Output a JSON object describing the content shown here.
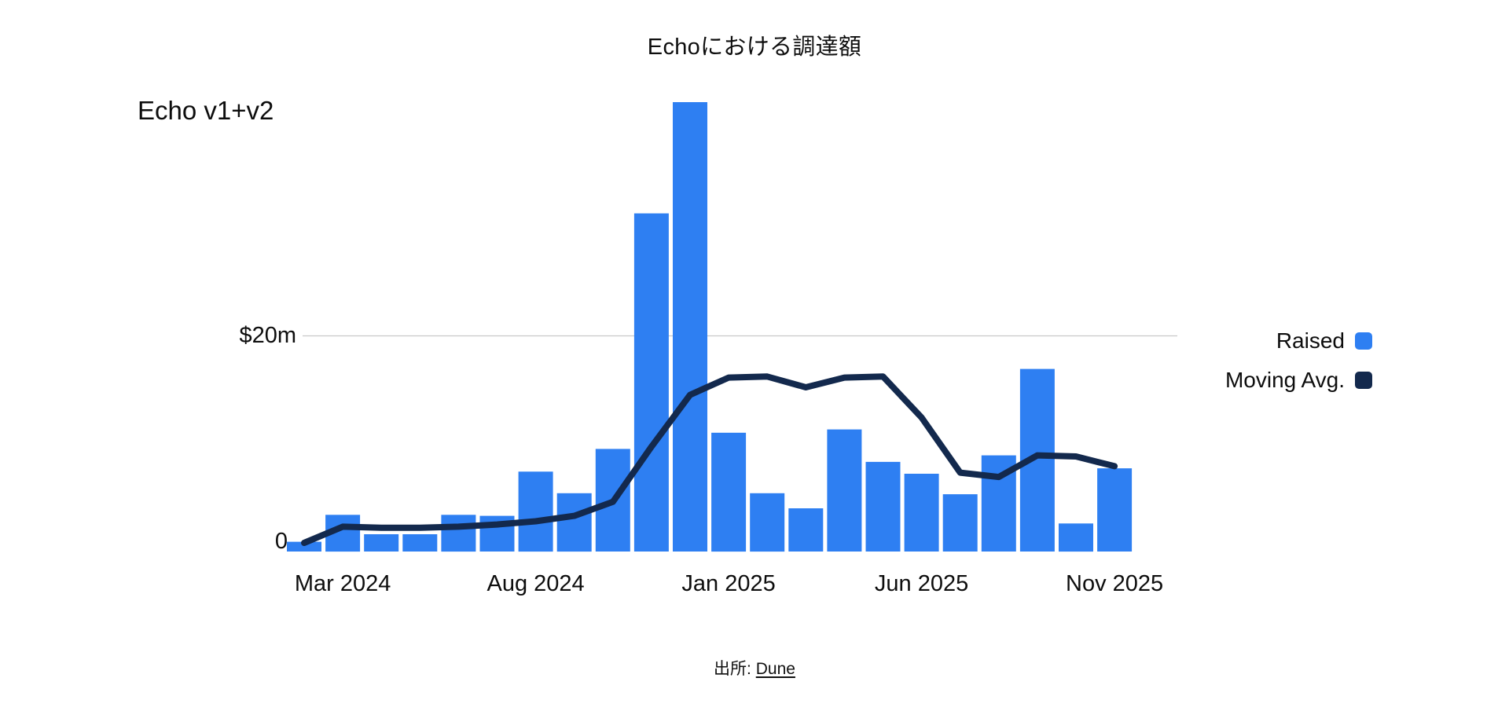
{
  "title": "Echoにおける調達額",
  "annotation": "Echo v1+v2",
  "y_axis": {
    "label_20m": "$20m",
    "label_zero": "0"
  },
  "x_axis": {
    "ticks": [
      {
        "label": "Mar 2024",
        "index": 1
      },
      {
        "label": "Aug 2024",
        "index": 6
      },
      {
        "label": "Jan 2025",
        "index": 11
      },
      {
        "label": "Jun 2025",
        "index": 16
      },
      {
        "label": "Nov 2025",
        "index": 21
      }
    ]
  },
  "legend": [
    {
      "label": "Raised",
      "color": "#2E7FF2"
    },
    {
      "label": "Moving Avg.",
      "color": "#13294D"
    }
  ],
  "source": {
    "prefix": "出所:",
    "link_text": "Dune"
  },
  "colors": {
    "bar": "#2E7FF2",
    "line": "#13294D",
    "gridline": "#C9C9C9",
    "text": "#0D0D0D"
  },
  "chart_data": {
    "type": "bar",
    "title": "Echoにおける調達額",
    "subtitle": "Echo v1+v2",
    "unit": "USD millions",
    "categories": [
      "Feb 2024",
      "Mar 2024",
      "Apr 2024",
      "May 2024",
      "Jun 2024",
      "Jul 2024",
      "Aug 2024",
      "Sep 2024",
      "Oct 2024",
      "Nov 2024",
      "Dec 2024",
      "Jan 2025",
      "Feb 2025",
      "Mar 2025",
      "Apr 2025",
      "May 2025",
      "Jun 2025",
      "Jul 2025",
      "Aug 2025",
      "Sep 2025",
      "Oct 2025",
      "Nov 2025"
    ],
    "series": [
      {
        "name": "Raised",
        "type": "bar",
        "color": "#2E7FF2",
        "values": [
          0.9,
          3.4,
          1.6,
          1.6,
          3.4,
          3.3,
          7.4,
          5.4,
          9.5,
          31.3,
          41.6,
          11.0,
          5.4,
          4.0,
          11.3,
          8.3,
          7.2,
          5.3,
          8.9,
          16.9,
          2.6,
          7.7
        ]
      },
      {
        "name": "Moving Avg.",
        "type": "line",
        "color": "#13294D",
        "values": [
          0.8,
          2.3,
          2.2,
          2.2,
          2.3,
          2.5,
          2.8,
          3.3,
          4.6,
          9.7,
          14.5,
          16.1,
          16.2,
          15.2,
          16.1,
          16.2,
          12.4,
          7.3,
          6.9,
          8.9,
          8.8,
          7.9
        ]
      }
    ],
    "xlabel": "",
    "ylabel": "",
    "ylim": [
      0,
      42
    ],
    "y_axis_ticks": [
      {
        "value": 0,
        "label": "0"
      },
      {
        "value": 20,
        "label": "$20m"
      }
    ],
    "grid": "single horizontal gridline at $20m",
    "legend_position": "right",
    "source": "出所: Dune"
  }
}
